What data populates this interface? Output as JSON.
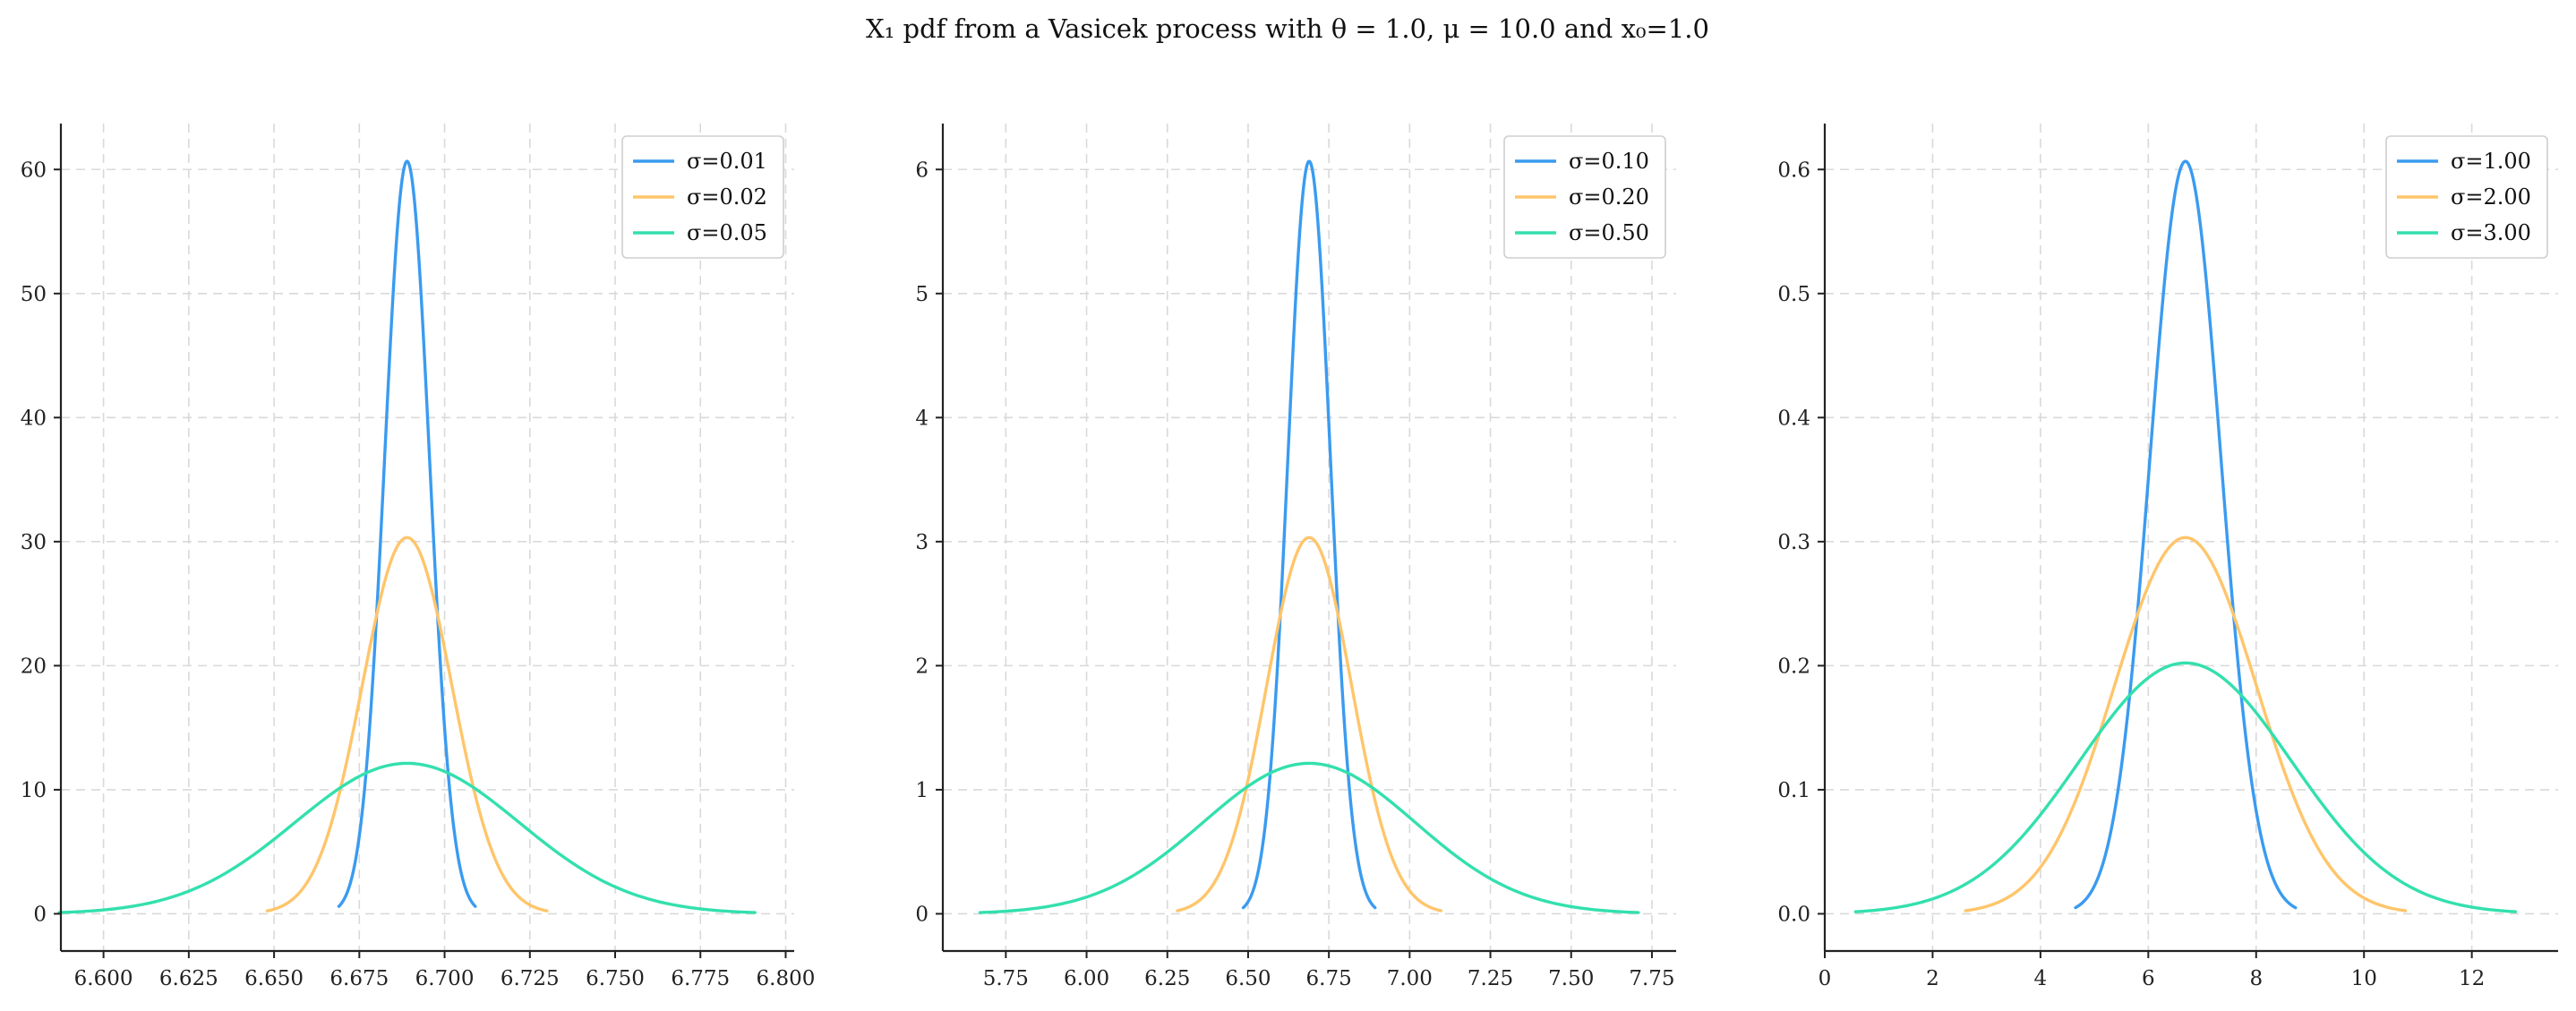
{
  "title": "X₁ pdf from a Vasicek process with θ = 1.0, μ = 10.0 and x₀=1.0",
  "colors": {
    "series": [
      "#3a9bf0",
      "#ffc56b",
      "#33e0ad"
    ],
    "grid": "#d9d9d9"
  },
  "chart_data": [
    {
      "type": "line",
      "mean": 6.689,
      "xlim": [
        6.5875,
        6.8025
      ],
      "ylim": [
        -3.0,
        63.7
      ],
      "xticks": [
        6.6,
        6.625,
        6.65,
        6.675,
        6.7,
        6.725,
        6.75,
        6.775,
        6.8
      ],
      "xtick_labels": [
        "6.600",
        "6.625",
        "6.650",
        "6.675",
        "6.700",
        "6.725",
        "6.750",
        "6.775",
        "6.800"
      ],
      "yticks": [
        0,
        10,
        20,
        30,
        40,
        50,
        60
      ],
      "ytick_labels": [
        "0",
        "10",
        "20",
        "30",
        "40",
        "50",
        "60"
      ],
      "grid": true,
      "legend_position": "top-right",
      "series": [
        {
          "name": "σ=0.01",
          "sd": 0.006576,
          "x_range": [
            6.669,
            6.709
          ],
          "peak": 60.66
        },
        {
          "name": "σ=0.02",
          "sd": 0.013152,
          "x_range": [
            6.648,
            6.73
          ],
          "peak": 30.33
        },
        {
          "name": "σ=0.05",
          "sd": 0.03288,
          "x_range": [
            6.587,
            6.791
          ],
          "peak": 12.13
        }
      ]
    },
    {
      "type": "line",
      "mean": 6.689,
      "xlim": [
        5.555,
        7.825
      ],
      "ylim": [
        -0.3,
        6.37
      ],
      "xticks": [
        5.75,
        6.0,
        6.25,
        6.5,
        6.75,
        7.0,
        7.25,
        7.5,
        7.75
      ],
      "xtick_labels": [
        "5.75",
        "6.00",
        "6.25",
        "6.50",
        "6.75",
        "7.00",
        "7.25",
        "7.50",
        "7.75"
      ],
      "yticks": [
        0,
        1,
        2,
        3,
        4,
        5,
        6
      ],
      "ytick_labels": [
        "0",
        "1",
        "2",
        "3",
        "4",
        "5",
        "6"
      ],
      "grid": true,
      "legend_position": "top-right",
      "series": [
        {
          "name": "σ=0.10",
          "sd": 0.06576,
          "x_range": [
            6.485,
            6.893
          ],
          "peak": 6.066
        },
        {
          "name": "σ=0.20",
          "sd": 0.13152,
          "x_range": [
            6.281,
            7.097
          ],
          "peak": 3.033
        },
        {
          "name": "σ=0.50",
          "sd": 0.3288,
          "x_range": [
            5.67,
            7.708
          ],
          "peak": 1.213
        }
      ]
    },
    {
      "type": "line",
      "mean": 6.689,
      "xlim": [
        0.0,
        13.6
      ],
      "ylim": [
        -0.03,
        0.637
      ],
      "xticks": [
        0,
        2,
        4,
        6,
        8,
        10,
        12
      ],
      "xtick_labels": [
        "0",
        "2",
        "4",
        "6",
        "8",
        "10",
        "12"
      ],
      "yticks": [
        0.0,
        0.1,
        0.2,
        0.3,
        0.4,
        0.5,
        0.6
      ],
      "ytick_labels": [
        "0.0",
        "0.1",
        "0.2",
        "0.3",
        "0.4",
        "0.5",
        "0.6"
      ],
      "grid": true,
      "legend_position": "top-right",
      "series": [
        {
          "name": "σ=1.00",
          "sd": 0.6576,
          "x_range": [
            4.65,
            8.73
          ],
          "peak": 0.6066
        },
        {
          "name": "σ=2.00",
          "sd": 1.3152,
          "x_range": [
            2.61,
            10.77
          ],
          "peak": 0.3033
        },
        {
          "name": "σ=3.00",
          "sd": 1.9728,
          "x_range": [
            0.57,
            12.81
          ],
          "peak": 0.2022
        }
      ]
    }
  ]
}
